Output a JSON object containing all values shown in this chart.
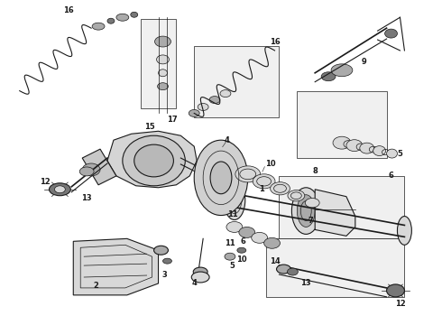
{
  "bg_color": "#ffffff",
  "line_color": "#1a1a1a",
  "gray_light": "#d8d8d8",
  "gray_mid": "#aaaaaa",
  "gray_dark": "#777777",
  "fig_width": 4.9,
  "fig_height": 3.6,
  "dpi": 100,
  "title": "",
  "lw_main": 0.8,
  "lw_thin": 0.5,
  "lw_thick": 1.2
}
